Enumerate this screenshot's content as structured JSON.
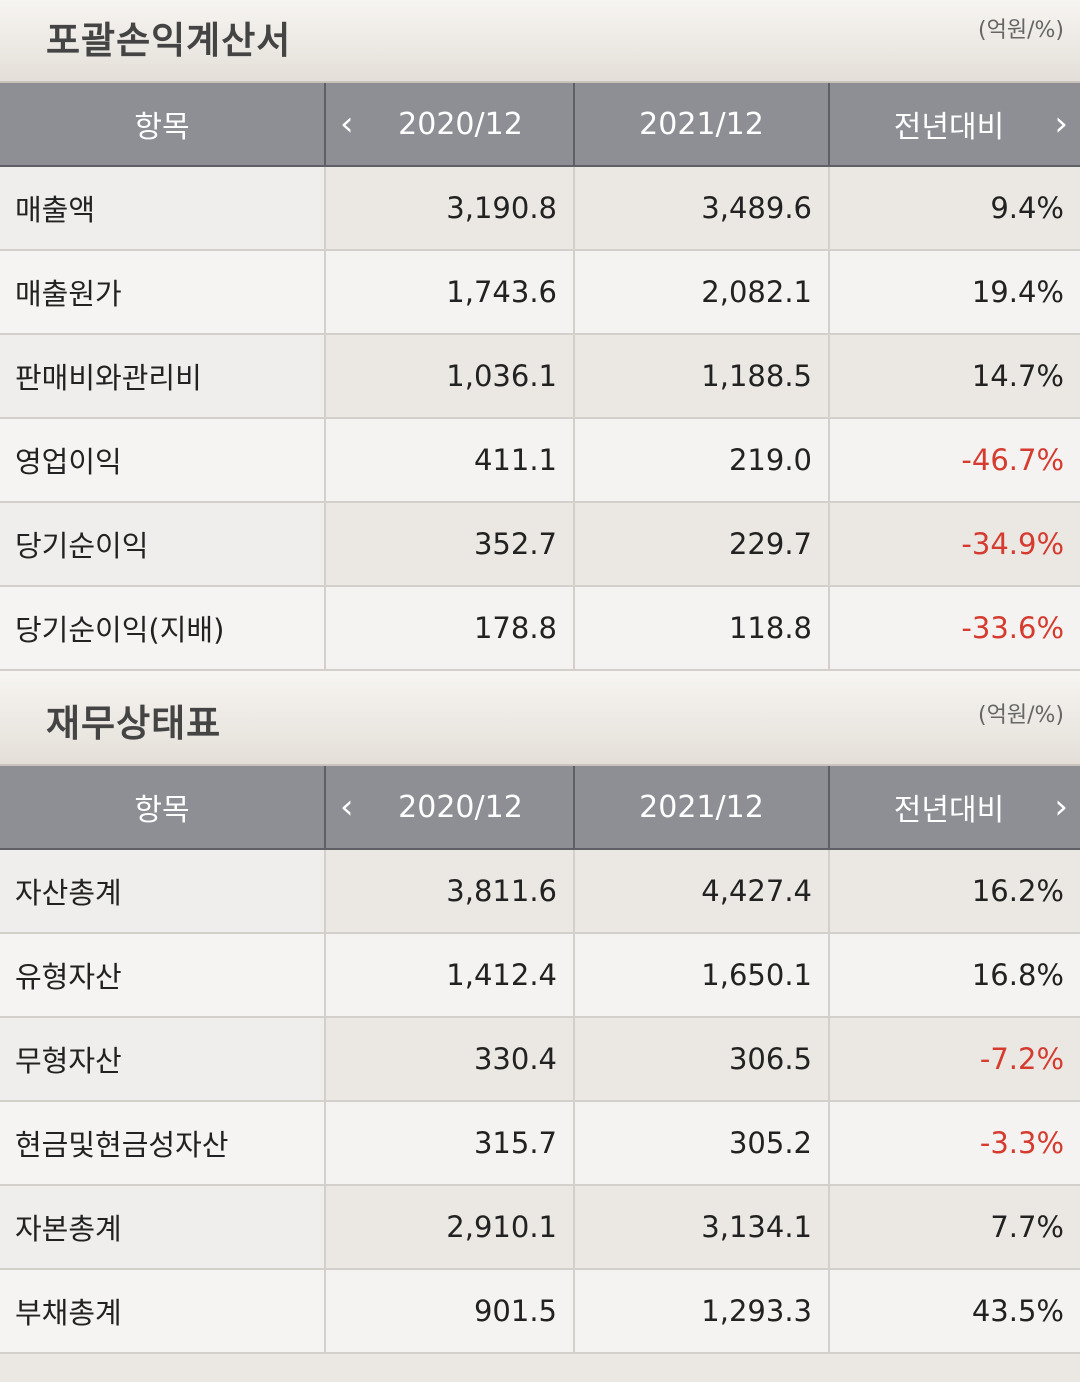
{
  "income_statement": {
    "title": "포괄손익계산서",
    "unit": "(억원/%)",
    "headers": {
      "item": "항목",
      "prev": "2020/12",
      "curr": "2021/12",
      "yoy": "전년대비"
    },
    "rows": [
      {
        "item": "매출액",
        "prev": "3,190.8",
        "curr": "3,489.6",
        "yoy": "9.4%",
        "negative": false
      },
      {
        "item": "매출원가",
        "prev": "1,743.6",
        "curr": "2,082.1",
        "yoy": "19.4%",
        "negative": false
      },
      {
        "item": "판매비와관리비",
        "prev": "1,036.1",
        "curr": "1,188.5",
        "yoy": "14.7%",
        "negative": false
      },
      {
        "item": "영업이익",
        "prev": "411.1",
        "curr": "219.0",
        "yoy": "-46.7%",
        "negative": true
      },
      {
        "item": "당기순이익",
        "prev": "352.7",
        "curr": "229.7",
        "yoy": "-34.9%",
        "negative": true
      },
      {
        "item": "당기순이익(지배)",
        "prev": "178.8",
        "curr": "118.8",
        "yoy": "-33.6%",
        "negative": true
      }
    ]
  },
  "balance_sheet": {
    "title": "재무상태표",
    "unit": "(억원/%)",
    "headers": {
      "item": "항목",
      "prev": "2020/12",
      "curr": "2021/12",
      "yoy": "전년대비"
    },
    "rows": [
      {
        "item": "자산총계",
        "prev": "3,811.6",
        "curr": "4,427.4",
        "yoy": "16.2%",
        "negative": false
      },
      {
        "item": "유형자산",
        "prev": "1,412.4",
        "curr": "1,650.1",
        "yoy": "16.8%",
        "negative": false
      },
      {
        "item": "무형자산",
        "prev": "330.4",
        "curr": "306.5",
        "yoy": "-7.2%",
        "negative": true
      },
      {
        "item": "현금및현금성자산",
        "prev": "315.7",
        "curr": "305.2",
        "yoy": "-3.3%",
        "negative": true
      },
      {
        "item": "자본총계",
        "prev": "2,910.1",
        "curr": "3,134.1",
        "yoy": "7.7%",
        "negative": false
      },
      {
        "item": "부채총계",
        "prev": "901.5",
        "curr": "1,293.3",
        "yoy": "43.5%",
        "negative": false
      }
    ]
  },
  "colors": {
    "negative": "#d63b2f",
    "header_bg": "#8e8f94"
  },
  "icons": {
    "prev": "chevron-left-icon",
    "next": "chevron-right-icon"
  }
}
